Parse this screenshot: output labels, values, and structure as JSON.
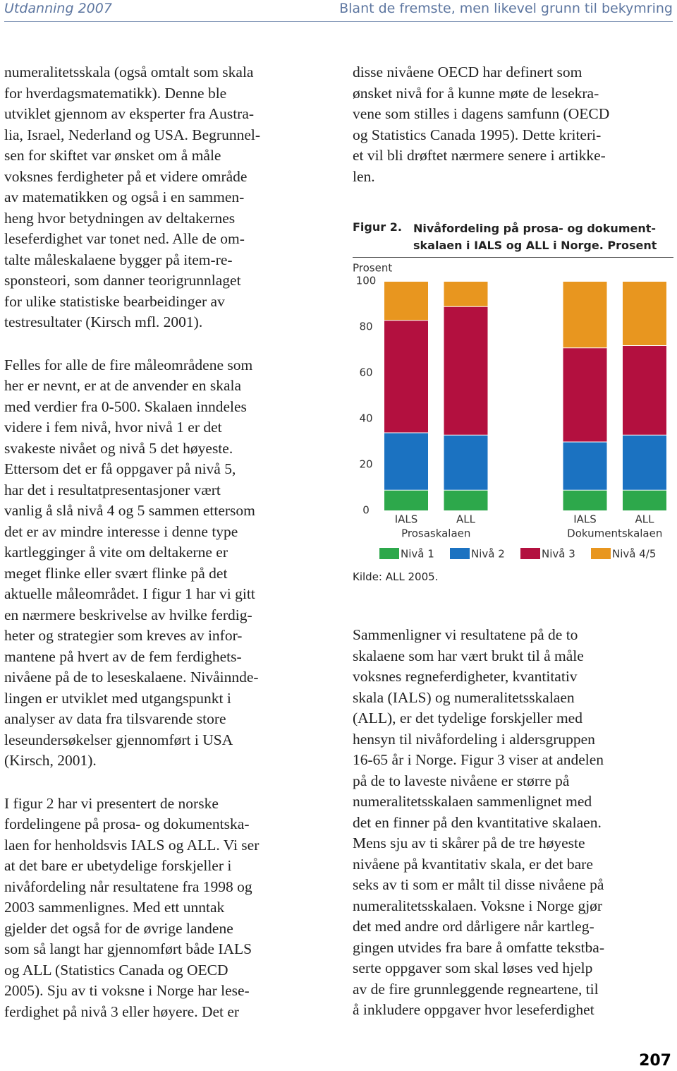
{
  "header": {
    "left": "Utdanning 2007",
    "right": "Blant de fremste, men likevel grunn til bekymring"
  },
  "left_column": {
    "paragraphs": [
      {
        "lines": [
          "numeralitetsskala (også omtalt som skala",
          "for hverdagsmatematikk). Denne ble",
          "utviklet gjennom av eksperter fra Austra-",
          "lia, Israel, Nederland og USA. Begrunnel-",
          "sen for skiftet var ønsket om å måle",
          "voksnes ferdigheter på et videre område",
          "av matematikken og også i en sammen-",
          "heng hvor betydningen av deltakernes",
          "leseferdighet var tonet ned. Alle de om-",
          "talte måleskalaene bygger på item-re-",
          "sponsteori, som danner teorigrunnlaget",
          "for ulike statistiske bearbeidinger av",
          "testresultater (Kirsch mfl. 2001)."
        ]
      },
      {
        "lines": [
          "Felles for alle de fire måleområdene som",
          "her er nevnt, er at de anvender en skala",
          "med verdier fra 0-500. Skalaen inndeles",
          "videre i fem nivå, hvor nivå 1 er det",
          "svakeste nivået og nivå 5 det høyeste.",
          "Ettersom det er få oppgaver på nivå 5,",
          "har det i resultatpresentasjoner vært",
          "vanlig å slå nivå 4 og 5 sammen ettersom",
          "det er av mindre interesse i denne type",
          "kartlegginger å vite om deltakerne er",
          "meget flinke eller svært flinke på det",
          "aktuelle måleområdet. I figur 1 har vi gitt",
          "en nærmere beskrivelse av hvilke ferdig-",
          "heter og strategier som kreves av infor-",
          "mantene på hvert av de fem ferdighets-",
          "nivåene på de to leseskalaene. Nivåinnde-",
          "lingen er utviklet med utgangspunkt i",
          "analyser av data fra tilsvarende store",
          "leseundersøkelser gjennomført i USA",
          "(Kirsch, 2001)."
        ]
      },
      {
        "lines": [
          "I figur 2 har vi presentert de norske",
          "fordelingene på prosa- og dokumentska-",
          "laen for henholdsvis IALS og ALL. Vi ser",
          "at det bare er ubetydelige forskjeller i",
          "nivåfordeling når resultatene fra 1998 og",
          "2003 sammenlignes. Med ett unntak",
          "gjelder det også for de øvrige landene",
          "som så langt har gjennomført både IALS",
          "og ALL (Statistics Canada og OECD",
          "2005). Sju av ti voksne i Norge har lese-",
          "ferdighet på nivå 3 eller høyere. Det er"
        ]
      }
    ]
  },
  "right_column": {
    "paragraphs_before": [
      {
        "lines": [
          "disse nivåene OECD har definert som",
          "ønsket nivå for å kunne møte de lesekra-",
          "vene som stilles i dagens samfunn (OECD",
          "og Statistics Canada 1995). Dette kriteri-",
          "et vil bli drøftet nærmere senere i artikke-",
          "len."
        ]
      }
    ],
    "paragraphs_after": [
      {
        "lines": [
          "Sammenligner vi resultatene på de to",
          "skalaene som har vært brukt til å måle",
          "voksnes regneferdigheter, kvantitativ",
          "skala (IALS) og numeralitetsskalaen",
          "(ALL), er det tydelige forskjeller med",
          "hensyn til nivåfordeling i aldersgruppen",
          "16-65 år i Norge. Figur 3 viser at andelen",
          "på de to laveste nivåene er større på",
          "numeralitetsskalaen sammenlignet med",
          "det en finner på den kvantitative skalaen.",
          "Mens sju av ti skårer på de tre høyeste",
          "nivåene på kvantitativ skala, er det bare",
          "seks av ti som er målt til disse nivåene på",
          "numeralitetsskalaen. Voksne i Norge gjør",
          "det med andre ord dårligere når kartleg-",
          "gingen utvides fra bare å omfatte tekstba-",
          "serte oppgaver som skal løses ved hjelp",
          "av de fire grunnleggende regneartene, til",
          "å inkludere oppgaver hvor leseferdighet"
        ]
      }
    ]
  },
  "figure": {
    "label": "Figur 2.",
    "title_lines": [
      "Nivåfordeling på prosa- og dokument-",
      "skalaen i IALS og ALL i Norge. Prosent"
    ],
    "source": "Kilde: ALL 2005."
  },
  "chart_data": {
    "type": "stacked_bar",
    "y_label": "Prosent",
    "categories": [
      "IALS",
      "ALL",
      "IALS",
      "ALL"
    ],
    "groups": [
      {
        "label": "Prosaskalaen",
        "size": 2
      },
      {
        "label": "Dokumentskalaen",
        "size": 2
      }
    ],
    "series": [
      {
        "name": "Nivå 1",
        "color": "#2da84b",
        "values": [
          9,
          9,
          9,
          9
        ]
      },
      {
        "name": "Nivå 2",
        "color": "#1b72c1",
        "values": [
          25,
          24,
          21,
          24
        ]
      },
      {
        "name": "Nivå 3",
        "color": "#b3103f",
        "values": [
          49,
          56,
          41,
          39
        ]
      },
      {
        "name": "Nivå 4/5",
        "color": "#e8961f",
        "values": [
          17,
          11,
          29,
          28
        ]
      }
    ],
    "ylim": [
      0,
      100
    ],
    "yticks": [
      0,
      20,
      40,
      60,
      80,
      100
    ],
    "grid": false
  },
  "page_number": "207"
}
